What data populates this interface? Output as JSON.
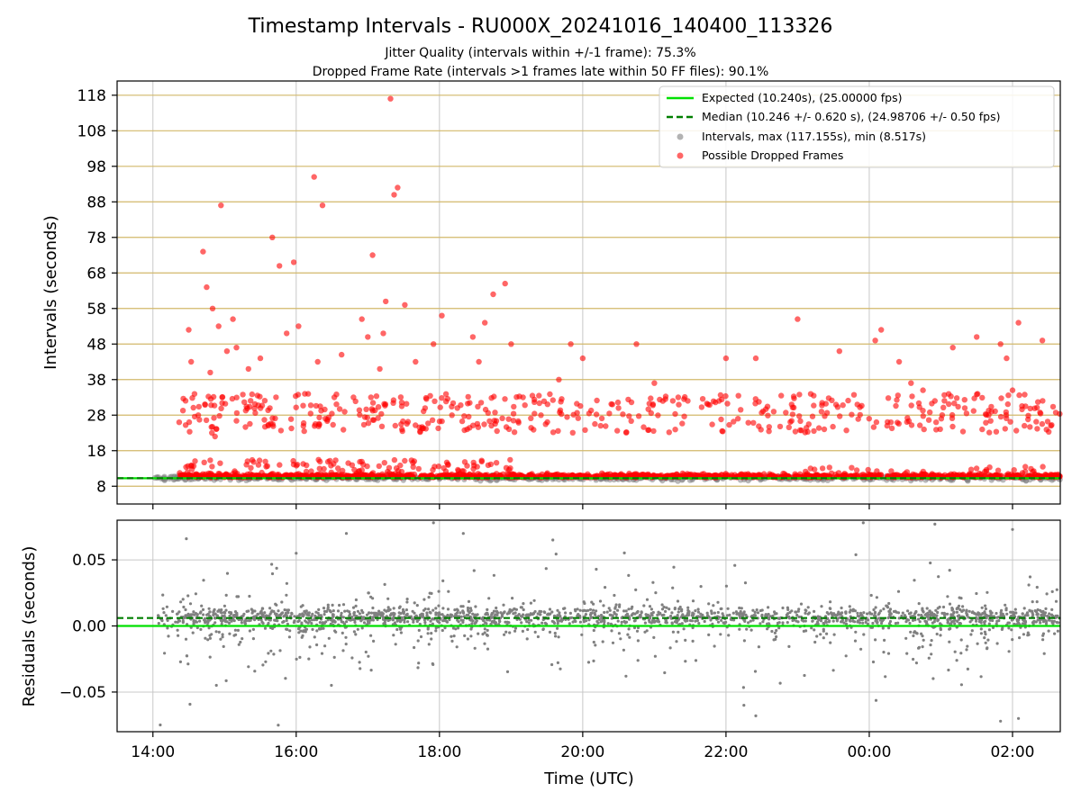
{
  "figure": {
    "title": "Timestamp Intervals - RU000X_20241016_140400_113326",
    "subtitle_1": "Jitter Quality (intervals within +/-1 frame): 75.3%",
    "subtitle_2": "Dropped Frame Rate (intervals >1 frames late within 50 FF files): 90.1%"
  },
  "colors": {
    "expected": "#00e000",
    "median": "#007f00",
    "intervals": "#808080",
    "dropped": "#ff0000",
    "gold_grid": "#d2b86a",
    "grid": "#c8c8c8"
  },
  "chart_data": [
    {
      "type": "scatter",
      "name": "intervals",
      "ylabel": "Intervals (seconds)",
      "xlabel": "",
      "xlim": [
        "13:30",
        "02:40"
      ],
      "ylim": [
        3,
        122
      ],
      "y_ticks": [
        8,
        18,
        28,
        38,
        48,
        58,
        68,
        78,
        88,
        98,
        108,
        118
      ],
      "y_tick_labels": [
        "8",
        "18",
        "28",
        "38",
        "48",
        "58",
        "68",
        "78",
        "88",
        "98",
        "108",
        "118"
      ],
      "grid": "vertical at hour ticks; horizontal gold lines at 10 s steps",
      "legend": {
        "position": "upper-right",
        "entries": [
          "Expected (10.240s), (25.00000 fps)",
          "Median (10.246 +/- 0.620 s), (24.98706 +/- 0.50 fps)",
          "Intervals, max (117.155s), min (8.517s)",
          "Possible Dropped Frames"
        ]
      },
      "expected_interval": 10.24,
      "median_interval": 10.246,
      "max_interval": 117.155,
      "min_interval": 8.517,
      "dropped_frames_sample": [
        {
          "time": "14:22",
          "y": 26
        },
        {
          "time": "14:30",
          "y": 52
        },
        {
          "time": "14:32",
          "y": 43
        },
        {
          "time": "14:38",
          "y": 28
        },
        {
          "time": "14:42",
          "y": 74
        },
        {
          "time": "14:45",
          "y": 64
        },
        {
          "time": "14:48",
          "y": 40
        },
        {
          "time": "14:50",
          "y": 58
        },
        {
          "time": "14:52",
          "y": 22
        },
        {
          "time": "14:55",
          "y": 53
        },
        {
          "time": "14:57",
          "y": 87
        },
        {
          "time": "15:02",
          "y": 46
        },
        {
          "time": "15:07",
          "y": 55
        },
        {
          "time": "15:10",
          "y": 47
        },
        {
          "time": "15:20",
          "y": 41
        },
        {
          "time": "15:30",
          "y": 44
        },
        {
          "time": "15:38",
          "y": 30
        },
        {
          "time": "15:40",
          "y": 78
        },
        {
          "time": "15:46",
          "y": 70
        },
        {
          "time": "15:52",
          "y": 51
        },
        {
          "time": "15:58",
          "y": 71
        },
        {
          "time": "16:02",
          "y": 53
        },
        {
          "time": "16:10",
          "y": 34
        },
        {
          "time": "16:15",
          "y": 95
        },
        {
          "time": "16:18",
          "y": 43
        },
        {
          "time": "16:22",
          "y": 87
        },
        {
          "time": "16:38",
          "y": 45
        },
        {
          "time": "16:48",
          "y": 33
        },
        {
          "time": "16:55",
          "y": 55
        },
        {
          "time": "17:00",
          "y": 50
        },
        {
          "time": "17:04",
          "y": 73
        },
        {
          "time": "17:10",
          "y": 41
        },
        {
          "time": "17:13",
          "y": 51
        },
        {
          "time": "17:15",
          "y": 60
        },
        {
          "time": "17:19",
          "y": 117
        },
        {
          "time": "17:22",
          "y": 90
        },
        {
          "time": "17:25",
          "y": 92
        },
        {
          "time": "17:31",
          "y": 59
        },
        {
          "time": "17:40",
          "y": 43
        },
        {
          "time": "17:48",
          "y": 30
        },
        {
          "time": "17:55",
          "y": 48
        },
        {
          "time": "18:02",
          "y": 56
        },
        {
          "time": "18:15",
          "y": 30
        },
        {
          "time": "18:28",
          "y": 50
        },
        {
          "time": "18:33",
          "y": 43
        },
        {
          "time": "18:38",
          "y": 54
        },
        {
          "time": "18:45",
          "y": 62
        },
        {
          "time": "18:55",
          "y": 65
        },
        {
          "time": "19:00",
          "y": 48
        },
        {
          "time": "19:10",
          "y": 33
        },
        {
          "time": "19:25",
          "y": 28
        },
        {
          "time": "19:40",
          "y": 38
        },
        {
          "time": "19:50",
          "y": 48
        },
        {
          "time": "20:00",
          "y": 44
        },
        {
          "time": "20:15",
          "y": 25
        },
        {
          "time": "20:30",
          "y": 30
        },
        {
          "time": "20:45",
          "y": 48
        },
        {
          "time": "21:00",
          "y": 37
        },
        {
          "time": "21:20",
          "y": 33
        },
        {
          "time": "21:45",
          "y": 31
        },
        {
          "time": "22:00",
          "y": 44
        },
        {
          "time": "22:10",
          "y": 27
        },
        {
          "time": "22:25",
          "y": 44
        },
        {
          "time": "22:40",
          "y": 29
        },
        {
          "time": "22:55",
          "y": 31
        },
        {
          "time": "23:00",
          "y": 55
        },
        {
          "time": "23:20",
          "y": 29
        },
        {
          "time": "23:35",
          "y": 46
        },
        {
          "time": "23:50",
          "y": 31
        },
        {
          "time": "00:05",
          "y": 49
        },
        {
          "time": "00:10",
          "y": 52
        },
        {
          "time": "00:15",
          "y": 25
        },
        {
          "time": "00:25",
          "y": 43
        },
        {
          "time": "00:35",
          "y": 37
        },
        {
          "time": "00:45",
          "y": 35
        },
        {
          "time": "00:55",
          "y": 32
        },
        {
          "time": "01:10",
          "y": 47
        },
        {
          "time": "01:20",
          "y": 30
        },
        {
          "time": "01:30",
          "y": 50
        },
        {
          "time": "01:40",
          "y": 28
        },
        {
          "time": "01:50",
          "y": 48
        },
        {
          "time": "01:55",
          "y": 44
        },
        {
          "time": "02:00",
          "y": 35
        },
        {
          "time": "02:05",
          "y": 54
        },
        {
          "time": "02:10",
          "y": 25
        },
        {
          "time": "02:25",
          "y": 49
        }
      ]
    },
    {
      "type": "scatter",
      "name": "residuals",
      "ylabel": "Residuals (seconds)",
      "xlabel": "Time (UTC)",
      "xlim": [
        "13:30",
        "02:40"
      ],
      "ylim": [
        -0.08,
        0.08
      ],
      "y_ticks": [
        -0.05,
        0.0,
        0.05
      ],
      "y_tick_labels": [
        "−0.05",
        "0.00",
        "0.05"
      ],
      "x_ticks": [
        "14:00",
        "16:00",
        "18:00",
        "20:00",
        "22:00",
        "00:00",
        "02:00"
      ],
      "grid": "on",
      "expected_residual": 0.0,
      "median_residual": 0.006,
      "residual_outliers_sample": [
        {
          "time": "14:28",
          "y": 0.066
        },
        {
          "time": "15:45",
          "y": -0.075
        },
        {
          "time": "16:00",
          "y": 0.055
        },
        {
          "time": "16:42",
          "y": 0.07
        },
        {
          "time": "17:55",
          "y": 0.078
        },
        {
          "time": "18:20",
          "y": 0.07
        },
        {
          "time": "19:35",
          "y": 0.065
        },
        {
          "time": "22:15",
          "y": -0.06
        },
        {
          "time": "22:25",
          "y": -0.068
        },
        {
          "time": "23:55",
          "y": 0.078
        },
        {
          "time": "00:55",
          "y": 0.077
        },
        {
          "time": "01:50",
          "y": -0.072
        },
        {
          "time": "02:00",
          "y": 0.073
        },
        {
          "time": "02:05",
          "y": -0.07
        }
      ]
    }
  ]
}
